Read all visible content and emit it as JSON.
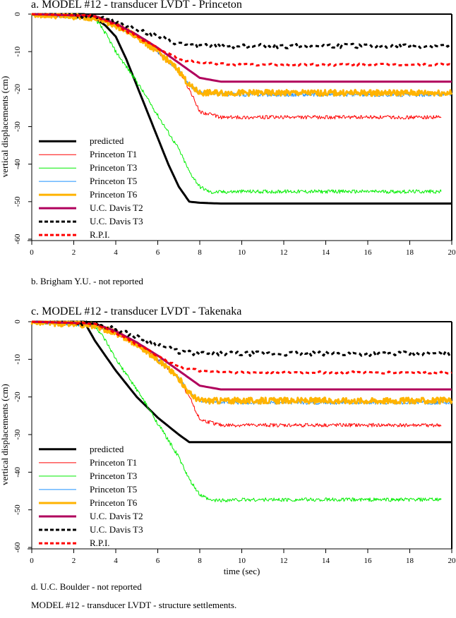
{
  "figure_caption": "MODEL #12 - transducer LVDT - structure settlements.",
  "notes": {
    "b": "b. Brigham Y.U. - not reported",
    "d": "d. U.C. Boulder - not reported"
  },
  "legend": [
    {
      "label": "predicted",
      "color": "#000000",
      "width": 3,
      "dash": false
    },
    {
      "label": "Princeton T1",
      "color": "#ff0000",
      "width": 1,
      "dash": false
    },
    {
      "label": "Princeton T3",
      "color": "#00ee00",
      "width": 1,
      "dash": false
    },
    {
      "label": "Princeton T5",
      "color": "#1e90ff",
      "width": 1,
      "dash": false
    },
    {
      "label": "Princeton T6",
      "color": "#ffb300",
      "width": 3,
      "dash": false
    },
    {
      "label": "U.C. Davis T2",
      "color": "#b0005c",
      "width": 3,
      "dash": false
    },
    {
      "label": "U.C. Davis T3",
      "color": "#000000",
      "width": 3,
      "dash": true
    },
    {
      "label": "R.P.I.",
      "color": "#ff0000",
      "width": 3,
      "dash": true
    }
  ],
  "chart_data": [
    {
      "type": "line",
      "title": "a. MODEL #12 - transducer LVDT - Princeton",
      "xlabel": "",
      "ylabel": "vertical displacements (cm)",
      "xlim": [
        0,
        20
      ],
      "ylim": [
        -60,
        0
      ],
      "xticks": [
        "0",
        "2",
        "4",
        "6",
        "8",
        "10",
        "12",
        "14",
        "16",
        "18",
        "20"
      ],
      "yticks": [
        "0",
        "-10",
        "-20",
        "-30",
        "-40",
        "-50",
        "-60"
      ],
      "grid": false,
      "legend_position": "lower left",
      "series": [
        {
          "name": "predicted",
          "x": [
            0,
            2.5,
            3,
            3.5,
            4,
            4.5,
            5,
            5.5,
            6,
            6.5,
            7,
            7.5,
            8,
            9,
            10,
            20
          ],
          "y": [
            0,
            0,
            -1,
            -3,
            -6,
            -12,
            -19,
            -26,
            -33,
            -40,
            -46,
            -50,
            -50.3,
            -50.5,
            -50.5,
            -50.5
          ]
        },
        {
          "name": "Princeton T1",
          "x": [
            0,
            3,
            4,
            5,
            6,
            7,
            7.5,
            8,
            9,
            10,
            12,
            14,
            16,
            18,
            19.5
          ],
          "y": [
            0,
            -1,
            -3,
            -6,
            -10,
            -15,
            -20,
            -26,
            -27.5,
            -27.5,
            -27.5,
            -27.5,
            -27.5,
            -27.5,
            -27.5
          ]
        },
        {
          "name": "Princeton T3",
          "x": [
            0,
            3,
            3.5,
            4,
            5,
            6,
            7,
            7.5,
            8,
            8.5,
            10,
            12,
            14,
            16,
            18,
            19.5
          ],
          "y": [
            0,
            -1,
            -5,
            -10,
            -18,
            -27,
            -36,
            -42,
            -46,
            -47.5,
            -47.3,
            -47.3,
            -47.3,
            -47.3,
            -47.3,
            -47.3
          ]
        },
        {
          "name": "Princeton T5",
          "x": [
            0,
            3,
            4,
            5,
            6,
            7,
            7.5,
            8,
            10,
            12,
            14,
            16,
            18,
            20
          ],
          "y": [
            0,
            -1,
            -3,
            -6,
            -10,
            -15,
            -19,
            -21,
            -21.5,
            -21.5,
            -21.5,
            -21.5,
            -21.5,
            -21.5
          ]
        },
        {
          "name": "Princeton T6",
          "x": [
            0,
            3,
            4,
            5,
            6,
            7,
            7.5,
            8,
            10,
            12,
            14,
            16,
            18,
            20
          ],
          "y": [
            0,
            -1,
            -3,
            -6,
            -10,
            -15,
            -19,
            -21,
            -21,
            -21,
            -21,
            -21,
            -21,
            -21
          ]
        },
        {
          "name": "U.C. Davis T2",
          "x": [
            0,
            3,
            4,
            5,
            6,
            7,
            8,
            9,
            10,
            12,
            14,
            16,
            18,
            20
          ],
          "y": [
            0,
            -0.5,
            -2.5,
            -5.5,
            -9,
            -13,
            -17,
            -18,
            -18,
            -18,
            -18,
            -18,
            -18,
            -18
          ]
        },
        {
          "name": "U.C. Davis T3",
          "x": [
            0,
            3,
            4,
            5,
            6,
            7,
            8,
            10,
            12,
            14,
            16,
            18,
            20
          ],
          "y": [
            0,
            -0.5,
            -2,
            -4,
            -6,
            -8,
            -8.5,
            -8.5,
            -8.5,
            -8.5,
            -8.5,
            -8.5,
            -8.5
          ]
        },
        {
          "name": "R.P.I.",
          "x": [
            0,
            3,
            4,
            5,
            6,
            7,
            8,
            10,
            12,
            14,
            16,
            18,
            20
          ],
          "y": [
            0,
            -0.5,
            -3,
            -6,
            -9,
            -12,
            -13,
            -13.5,
            -13.5,
            -13.5,
            -13.5,
            -13.5,
            -13.5
          ]
        }
      ]
    },
    {
      "type": "line",
      "title": "c. MODEL #12 - transducer LVDT - Takenaka",
      "xlabel": "time (sec)",
      "ylabel": "vertical displacements (cm)",
      "xlim": [
        0,
        20
      ],
      "ylim": [
        -60,
        0
      ],
      "xticks": [
        "0",
        "2",
        "4",
        "6",
        "8",
        "10",
        "12",
        "14",
        "16",
        "18",
        "20"
      ],
      "yticks": [
        "0",
        "-10",
        "-20",
        "-30",
        "-40",
        "-50",
        "-60"
      ],
      "grid": false,
      "legend_position": "lower left",
      "series": [
        {
          "name": "predicted",
          "x": [
            0,
            2.5,
            3,
            3.5,
            4,
            5,
            6,
            7,
            7.5,
            8,
            10,
            20
          ],
          "y": [
            0,
            0,
            -5,
            -9,
            -13,
            -20,
            -25.5,
            -30,
            -32,
            -32,
            -32,
            -32
          ]
        },
        {
          "name": "Princeton T1",
          "x": [
            0,
            3,
            4,
            5,
            6,
            7,
            7.5,
            8,
            9,
            10,
            12,
            14,
            16,
            18,
            19.5
          ],
          "y": [
            0,
            -1,
            -3,
            -6,
            -10,
            -15,
            -20,
            -26,
            -27.5,
            -27.5,
            -27.5,
            -27.5,
            -27.5,
            -27.5,
            -27.5
          ]
        },
        {
          "name": "Princeton T3",
          "x": [
            0,
            3,
            3.5,
            4,
            5,
            6,
            7,
            7.5,
            8,
            8.5,
            10,
            12,
            14,
            16,
            18,
            19.5
          ],
          "y": [
            0,
            -1,
            -5,
            -10,
            -18,
            -27,
            -36,
            -42,
            -46,
            -47.5,
            -47.3,
            -47.3,
            -47.3,
            -47.3,
            -47.3,
            -47.3
          ]
        },
        {
          "name": "Princeton T5",
          "x": [
            0,
            3,
            4,
            5,
            6,
            7,
            7.5,
            8,
            10,
            12,
            14,
            16,
            18,
            20
          ],
          "y": [
            0,
            -1,
            -3,
            -6,
            -10,
            -15,
            -19,
            -21,
            -21.5,
            -21.5,
            -21.5,
            -21.5,
            -21.5,
            -21.5
          ]
        },
        {
          "name": "Princeton T6",
          "x": [
            0,
            3,
            4,
            5,
            6,
            7,
            7.5,
            8,
            10,
            12,
            14,
            16,
            18,
            20
          ],
          "y": [
            0,
            -1,
            -3,
            -6,
            -10,
            -15,
            -19,
            -21,
            -21,
            -21,
            -21,
            -21,
            -21,
            -21
          ]
        },
        {
          "name": "U.C. Davis T2",
          "x": [
            0,
            3,
            4,
            5,
            6,
            7,
            8,
            9,
            10,
            12,
            14,
            16,
            18,
            20
          ],
          "y": [
            0,
            -0.5,
            -2.5,
            -5.5,
            -9,
            -13,
            -17,
            -18,
            -18,
            -18,
            -18,
            -18,
            -18,
            -18
          ]
        },
        {
          "name": "U.C. Davis T3",
          "x": [
            0,
            3,
            4,
            5,
            6,
            7,
            8,
            10,
            12,
            14,
            16,
            18,
            20
          ],
          "y": [
            0,
            -0.5,
            -2,
            -4,
            -6,
            -8,
            -8.5,
            -8.5,
            -8.5,
            -8.5,
            -8.5,
            -8.5,
            -8.5
          ]
        },
        {
          "name": "R.P.I.",
          "x": [
            0,
            3,
            4,
            5,
            6,
            7,
            8,
            10,
            12,
            14,
            16,
            18,
            20
          ],
          "y": [
            0,
            -0.5,
            -3,
            -6,
            -9,
            -12,
            -13,
            -13.5,
            -13.5,
            -13.5,
            -13.5,
            -13.5,
            -13.5
          ]
        }
      ]
    }
  ]
}
